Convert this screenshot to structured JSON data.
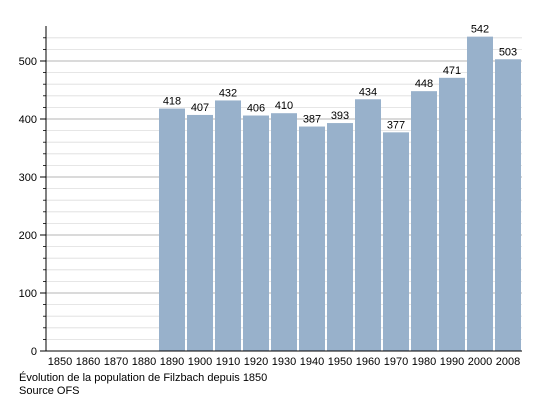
{
  "chart_data": {
    "type": "bar",
    "categories": [
      "1850",
      "1860",
      "1870",
      "1880",
      "1890",
      "1900",
      "1910",
      "1920",
      "1930",
      "1940",
      "1950",
      "1960",
      "1970",
      "1980",
      "1990",
      "2000",
      "2008"
    ],
    "values": [
      null,
      null,
      null,
      null,
      418,
      407,
      432,
      406,
      410,
      387,
      393,
      434,
      377,
      448,
      471,
      542,
      503
    ],
    "ylim": [
      0,
      550
    ],
    "yticks": [
      0,
      100,
      200,
      300,
      400,
      500
    ],
    "minor_ytick_step": 20,
    "grid": true,
    "bar_color": "#98b1cb",
    "grid_color": "#dddddd",
    "legend": "none"
  },
  "caption": {
    "line1": "Évolution de la population de Filzbach depuis 1850",
    "line2": "Source OFS"
  }
}
